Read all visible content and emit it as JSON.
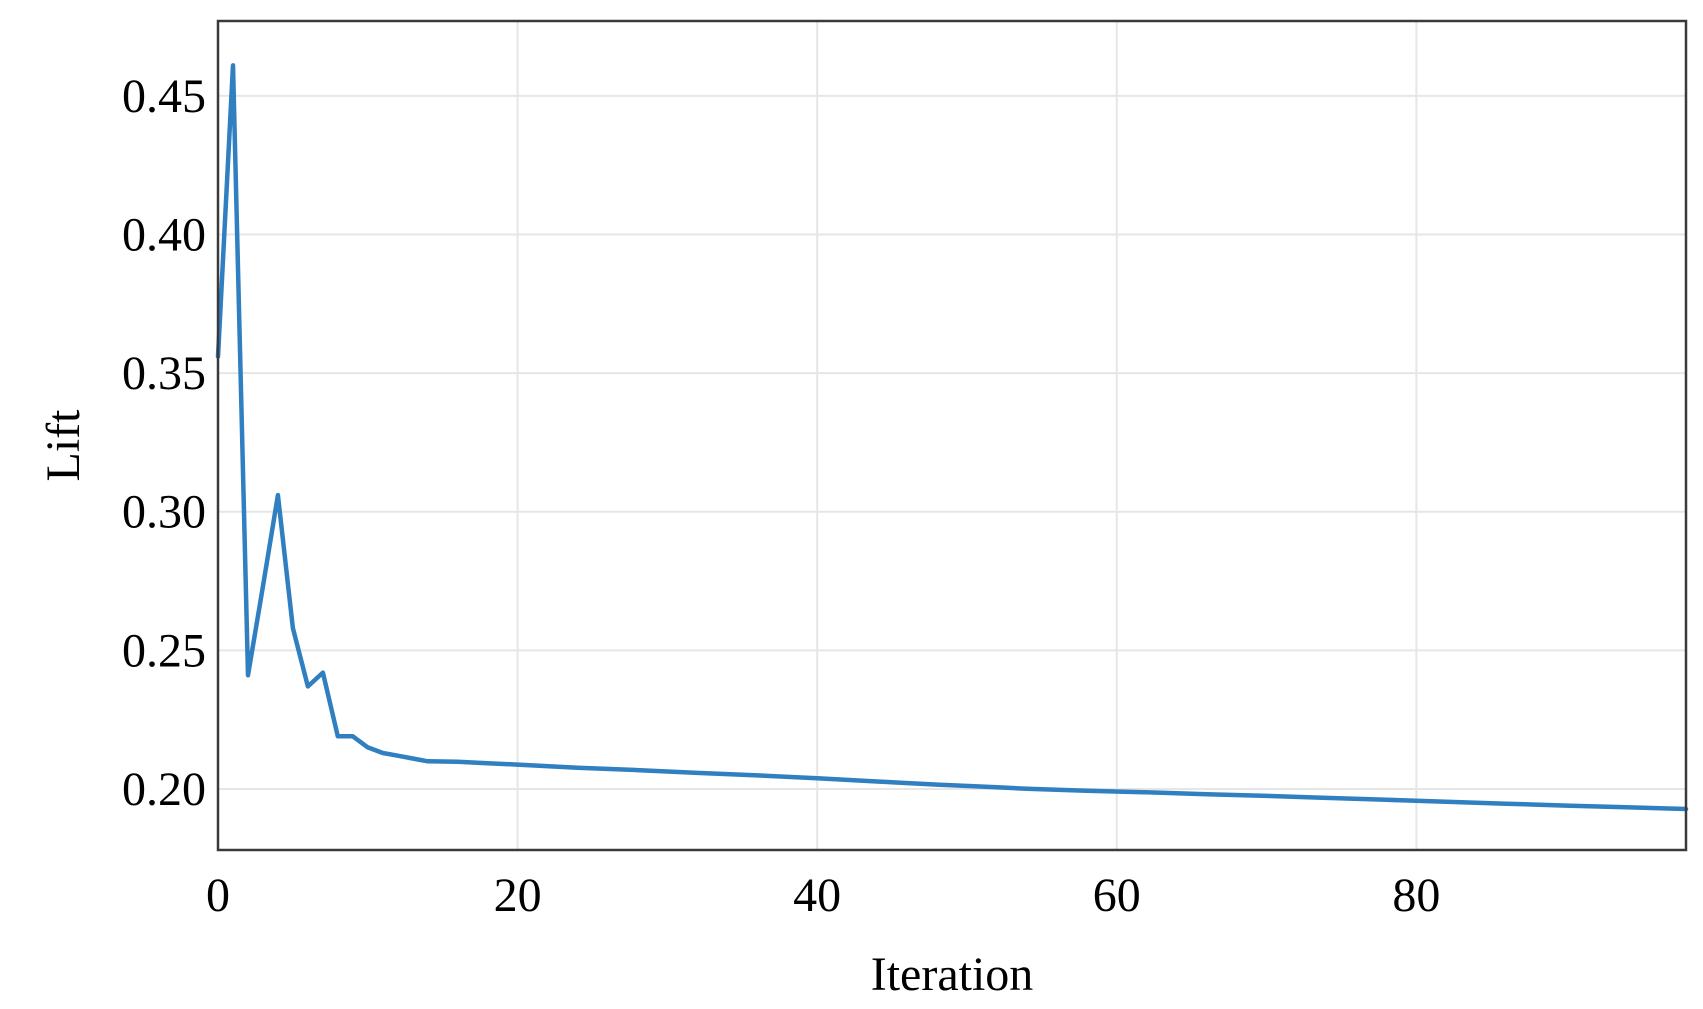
{
  "chart_data": {
    "type": "line",
    "title": "",
    "xlabel": "Iteration",
    "ylabel": "Lift",
    "xlim": [
      0,
      98
    ],
    "ylim": [
      0.178,
      0.477
    ],
    "xticks": [
      0,
      20,
      40,
      60,
      80
    ],
    "xtick_labels": [
      "0",
      "20",
      "40",
      "60",
      "80"
    ],
    "yticks": [
      0.2,
      0.25,
      0.3,
      0.35,
      0.4,
      0.45
    ],
    "ytick_labels": [
      "0.20",
      "0.25",
      "0.30",
      "0.35",
      "0.40",
      "0.45"
    ],
    "grid": true,
    "legend": "none",
    "colors": {
      "series": "#2f7fc1",
      "grid": "#e6e6e6",
      "frame": "#3a3a3a"
    },
    "series": [
      {
        "x": [
          0,
          1,
          2,
          3,
          4,
          5,
          6,
          7,
          8,
          9,
          10,
          11,
          12,
          13,
          14,
          16,
          18,
          20,
          24,
          28,
          32,
          36,
          40,
          44,
          48,
          52,
          54,
          58,
          62,
          66,
          70,
          74,
          78,
          82,
          86,
          90,
          94,
          98
        ],
        "values": [
          0.356,
          0.461,
          0.241,
          0.273,
          0.306,
          0.258,
          0.237,
          0.242,
          0.219,
          0.219,
          0.215,
          0.213,
          0.212,
          0.211,
          0.21,
          0.2098,
          0.2093,
          0.2088,
          0.2077,
          0.2068,
          0.2058,
          0.2049,
          0.2039,
          0.2027,
          0.2016,
          0.2006,
          0.2001,
          0.1994,
          0.1988,
          0.1981,
          0.1975,
          0.1968,
          0.1961,
          0.1954,
          0.1947,
          0.194,
          0.1934,
          0.1928
        ]
      }
    ]
  }
}
